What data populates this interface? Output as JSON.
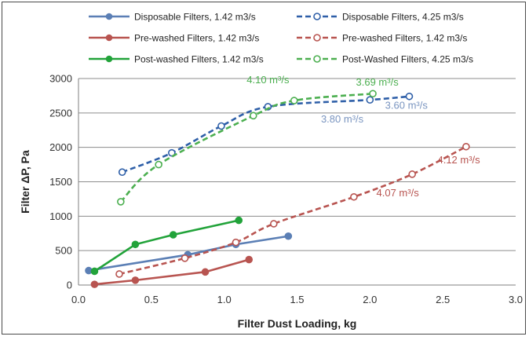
{
  "chart_data": {
    "type": "line",
    "xlabel": "Filter Dust Loading, kg",
    "ylabel": "Filter ΔP, Pa",
    "xlim": [
      0,
      3.0
    ],
    "ylim": [
      0,
      3000
    ],
    "xticks": [
      "0.0",
      "0.5",
      "1.0",
      "1.5",
      "2.0",
      "2.5",
      "3.0"
    ],
    "yticks": [
      "0",
      "500",
      "1000",
      "1500",
      "2000",
      "2500",
      "3000"
    ],
    "grid": "horizontal",
    "legend_position": "top",
    "series": [
      {
        "name": "Disposable Filters, 1.42 m3/s",
        "color": "#5b7fb5",
        "style": "solid",
        "marker": "filled-circle",
        "x": [
          0.07,
          0.75,
          1.08,
          1.44
        ],
        "y": [
          210,
          440,
          590,
          710
        ]
      },
      {
        "name": "Disposable Filters, 4.25 m3/s",
        "color": "#2e5fa8",
        "style": "dashed",
        "marker": "open-circle",
        "x": [
          0.3,
          0.64,
          0.98,
          1.3,
          2.0,
          2.27
        ],
        "y": [
          1640,
          1920,
          2310,
          2590,
          2690,
          2740
        ]
      },
      {
        "name": "Pre-washed Filters, 1.42 m3/s",
        "color": "#b85450",
        "style": "solid",
        "marker": "filled-circle",
        "x": [
          0.11,
          0.39,
          0.87,
          1.17
        ],
        "y": [
          10,
          70,
          190,
          370
        ]
      },
      {
        "name": "Pre-washed Filters, 1.42 m3/s",
        "color": "#b85450",
        "style": "dashed",
        "marker": "open-circle",
        "x": [
          0.28,
          0.73,
          1.08,
          1.34,
          1.89,
          2.29,
          2.66
        ],
        "y": [
          160,
          390,
          620,
          890,
          1280,
          1610,
          2010
        ]
      },
      {
        "name": "Post-washed Filters, 1.42 m3/s",
        "color": "#22a33a",
        "style": "solid",
        "marker": "filled-circle",
        "x": [
          0.11,
          0.39,
          0.65,
          1.1
        ],
        "y": [
          200,
          590,
          730,
          940
        ]
      },
      {
        "name": "Post-Washed Filters, 4.25 m3/s",
        "color": "#4caf50",
        "style": "dashed",
        "marker": "open-circle",
        "x": [
          0.29,
          0.55,
          1.2,
          1.48,
          2.02
        ],
        "y": [
          1210,
          1750,
          2460,
          2680,
          2780
        ]
      }
    ],
    "annotations": [
      {
        "text": "4.10 m³/s",
        "color": "#4caf50",
        "x": 1.3,
        "y": 2930
      },
      {
        "text": "3.69 m³/s",
        "color": "#4caf50",
        "x": 2.05,
        "y": 2900
      },
      {
        "text": "3.60 m³/s",
        "color": "#7a95c0",
        "x": 2.25,
        "y": 2560
      },
      {
        "text": "3.80 m³/s",
        "color": "#7a95c0",
        "x": 1.81,
        "y": 2360
      },
      {
        "text": "4.12 m³/s",
        "color": "#b85450",
        "x": 2.61,
        "y": 1770
      },
      {
        "text": "4.07 m³/s",
        "color": "#b85450",
        "x": 2.19,
        "y": 1290
      }
    ]
  }
}
